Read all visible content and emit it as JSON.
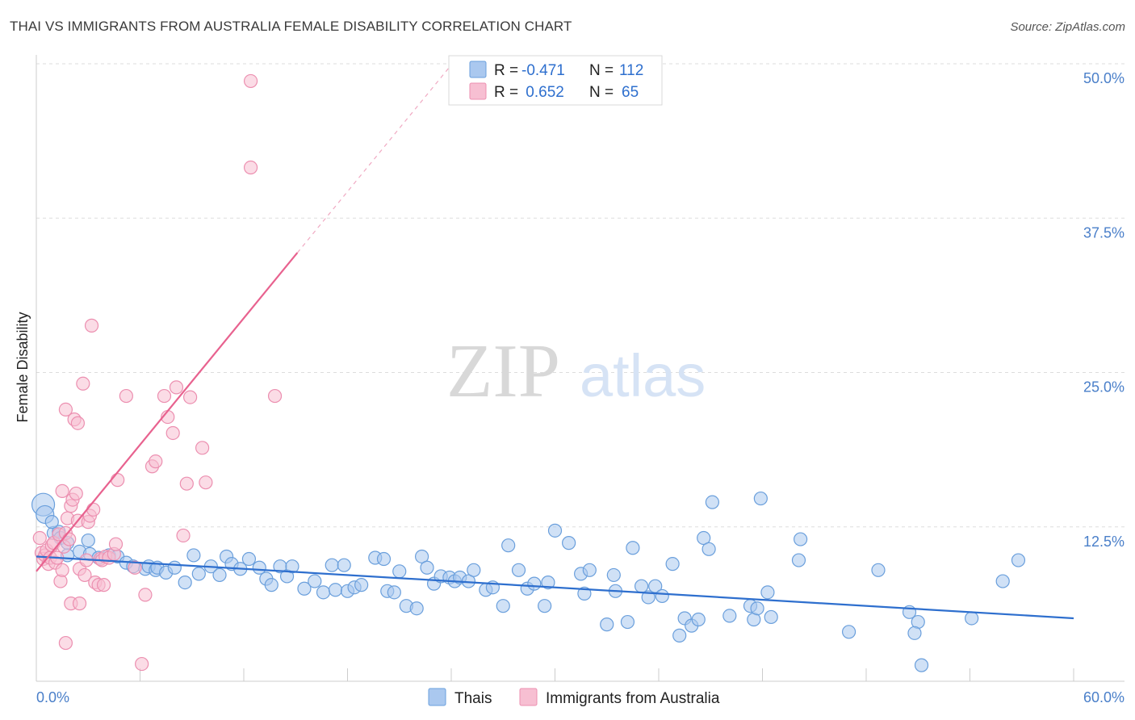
{
  "header": {
    "title": "THAI VS IMMIGRANTS FROM AUSTRALIA FEMALE DISABILITY CORRELATION CHART",
    "source": "Source: ZipAtlas.com"
  },
  "watermark": {
    "zip": "ZIP",
    "atlas": "atlas"
  },
  "legend": {
    "rows": [
      {
        "r_label": "R =",
        "r_value": "-0.471",
        "n_label": "N =",
        "n_value": "112",
        "color": "#aac8ef"
      },
      {
        "r_label": "R =",
        "r_value": " 0.652",
        "n_label": "N =",
        "n_value": "65",
        "color": "#f7bfd2"
      }
    ]
  },
  "colors": {
    "blue_fill": "#aac8ef",
    "blue_stroke": "#6a9fdc",
    "blue_line": "#2e6fce",
    "pink_fill": "#f7bfd2",
    "pink_stroke": "#ec8fb0",
    "pink_line": "#e8628f",
    "grid": "#dddddd",
    "tick_label": "#4a7fc9"
  },
  "chart_data": {
    "type": "scatter",
    "title": "THAI VS IMMIGRANTS FROM AUSTRALIA FEMALE DISABILITY CORRELATION CHART",
    "xlabel": "",
    "ylabel": "Female Disability",
    "xlim": [
      0,
      60
    ],
    "ylim": [
      0,
      50
    ],
    "x_tick_labels": [
      "0.0%",
      "60.0%"
    ],
    "y_ticks": [
      12.5,
      25.0,
      37.5,
      50.0
    ],
    "y_tick_labels": [
      "12.5%",
      "25.0%",
      "37.5%",
      "50.0%"
    ],
    "grid": true,
    "legend_position": "bottom",
    "series": [
      {
        "name": "Thais",
        "r": -0.471,
        "n": 112,
        "trend": {
          "x": [
            0,
            60
          ],
          "y": [
            10.1,
            5.1
          ]
        },
        "points": [
          [
            0.4,
            14.3
          ],
          [
            0.5,
            13.5
          ],
          [
            1.0,
            12.0
          ],
          [
            1.3,
            12.1
          ],
          [
            1.4,
            11.6
          ],
          [
            1.8,
            11.2
          ],
          [
            2.5,
            10.5
          ],
          [
            3.1,
            10.3
          ],
          [
            3.6,
            10.0
          ],
          [
            1.8,
            10.2
          ],
          [
            0.9,
            12.9
          ],
          [
            3.0,
            11.4
          ],
          [
            4.2,
            10.2
          ],
          [
            4.7,
            10.1
          ],
          [
            5.2,
            9.6
          ],
          [
            5.6,
            9.3
          ],
          [
            6.3,
            9.1
          ],
          [
            6.5,
            9.3
          ],
          [
            6.9,
            9.0
          ],
          [
            7.0,
            9.2
          ],
          [
            7.5,
            8.8
          ],
          [
            8.0,
            9.2
          ],
          [
            8.6,
            8.0
          ],
          [
            9.1,
            10.2
          ],
          [
            9.4,
            8.7
          ],
          [
            10.1,
            9.3
          ],
          [
            10.6,
            8.6
          ],
          [
            11.0,
            10.1
          ],
          [
            11.3,
            9.5
          ],
          [
            11.8,
            9.1
          ],
          [
            12.3,
            9.9
          ],
          [
            12.9,
            9.2
          ],
          [
            13.3,
            8.3
          ],
          [
            13.6,
            7.8
          ],
          [
            14.1,
            9.3
          ],
          [
            14.5,
            8.5
          ],
          [
            14.8,
            9.3
          ],
          [
            15.5,
            7.5
          ],
          [
            16.1,
            8.1
          ],
          [
            16.6,
            7.2
          ],
          [
            17.1,
            9.4
          ],
          [
            17.3,
            7.4
          ],
          [
            17.8,
            9.4
          ],
          [
            18.0,
            7.3
          ],
          [
            18.4,
            7.6
          ],
          [
            18.8,
            7.8
          ],
          [
            19.6,
            10.0
          ],
          [
            20.1,
            9.9
          ],
          [
            20.3,
            7.3
          ],
          [
            20.7,
            7.2
          ],
          [
            21.0,
            8.9
          ],
          [
            21.4,
            6.1
          ],
          [
            22.0,
            5.9
          ],
          [
            22.3,
            10.1
          ],
          [
            22.6,
            9.2
          ],
          [
            23.0,
            7.9
          ],
          [
            23.4,
            8.5
          ],
          [
            23.9,
            8.4
          ],
          [
            24.2,
            8.1
          ],
          [
            24.5,
            8.4
          ],
          [
            25.0,
            8.1
          ],
          [
            25.3,
            9.0
          ],
          [
            26.0,
            7.4
          ],
          [
            26.4,
            7.6
          ],
          [
            27.0,
            6.1
          ],
          [
            27.3,
            11.0
          ],
          [
            27.9,
            9.0
          ],
          [
            28.4,
            7.5
          ],
          [
            28.8,
            7.9
          ],
          [
            29.4,
            6.1
          ],
          [
            29.6,
            8.0
          ],
          [
            30.0,
            12.2
          ],
          [
            30.8,
            11.2
          ],
          [
            31.5,
            8.7
          ],
          [
            31.7,
            7.1
          ],
          [
            32.0,
            9.0
          ],
          [
            33.0,
            4.6
          ],
          [
            33.4,
            8.6
          ],
          [
            33.5,
            7.3
          ],
          [
            34.2,
            4.8
          ],
          [
            34.5,
            10.8
          ],
          [
            35.0,
            7.7
          ],
          [
            35.4,
            6.8
          ],
          [
            35.8,
            7.7
          ],
          [
            36.2,
            6.9
          ],
          [
            36.8,
            9.5
          ],
          [
            37.2,
            3.7
          ],
          [
            37.5,
            5.1
          ],
          [
            37.9,
            4.5
          ],
          [
            38.3,
            5.0
          ],
          [
            38.6,
            11.6
          ],
          [
            38.9,
            10.7
          ],
          [
            39.1,
            14.5
          ],
          [
            40.1,
            5.3
          ],
          [
            41.3,
            6.1
          ],
          [
            41.5,
            5.0
          ],
          [
            41.7,
            5.9
          ],
          [
            41.9,
            14.8
          ],
          [
            42.3,
            7.2
          ],
          [
            42.5,
            5.2
          ],
          [
            44.1,
            9.8
          ],
          [
            44.2,
            11.5
          ],
          [
            48.7,
            9.0
          ],
          [
            47.0,
            4.0
          ],
          [
            50.5,
            5.6
          ],
          [
            51.0,
            4.8
          ],
          [
            50.8,
            3.9
          ],
          [
            51.2,
            1.3
          ],
          [
            54.1,
            5.1
          ],
          [
            55.9,
            8.1
          ],
          [
            56.8,
            9.8
          ]
        ]
      },
      {
        "name": "Immigrants from Australia",
        "r": 0.652,
        "n": 65,
        "trend": {
          "x": [
            0,
            15.1
          ],
          "y": [
            8.9,
            34.7
          ],
          "dashed_to": {
            "x": 24.0,
            "y": 49.9
          }
        },
        "points": [
          [
            0.2,
            11.6
          ],
          [
            0.3,
            10.4
          ],
          [
            0.4,
            9.9
          ],
          [
            0.5,
            10.2
          ],
          [
            0.6,
            10.6
          ],
          [
            0.7,
            9.5
          ],
          [
            0.8,
            10.0
          ],
          [
            0.9,
            11.0
          ],
          [
            1.0,
            11.2
          ],
          [
            1.1,
            9.6
          ],
          [
            1.2,
            10.0
          ],
          [
            1.3,
            11.9
          ],
          [
            1.4,
            8.1
          ],
          [
            1.5,
            9.0
          ],
          [
            1.6,
            10.9
          ],
          [
            1.7,
            12.0
          ],
          [
            1.9,
            11.5
          ],
          [
            2.0,
            6.3
          ],
          [
            1.5,
            15.4
          ],
          [
            1.7,
            22.0
          ],
          [
            1.8,
            13.2
          ],
          [
            2.0,
            14.2
          ],
          [
            2.1,
            14.7
          ],
          [
            2.2,
            21.2
          ],
          [
            2.3,
            15.2
          ],
          [
            2.4,
            13.0
          ],
          [
            2.5,
            9.1
          ],
          [
            2.4,
            20.9
          ],
          [
            2.5,
            6.3
          ],
          [
            2.7,
            24.1
          ],
          [
            2.8,
            8.6
          ],
          [
            2.9,
            9.8
          ],
          [
            3.0,
            12.9
          ],
          [
            3.1,
            13.4
          ],
          [
            3.2,
            28.8
          ],
          [
            3.3,
            13.9
          ],
          [
            3.4,
            8.0
          ],
          [
            3.6,
            7.8
          ],
          [
            3.7,
            9.9
          ],
          [
            3.8,
            9.8
          ],
          [
            3.9,
            7.8
          ],
          [
            4.0,
            10.1
          ],
          [
            4.2,
            10.0
          ],
          [
            4.5,
            10.3
          ],
          [
            4.6,
            11.1
          ],
          [
            4.7,
            16.3
          ],
          [
            5.2,
            23.1
          ],
          [
            5.7,
            9.2
          ],
          [
            6.3,
            7.0
          ],
          [
            6.1,
            1.4
          ],
          [
            6.7,
            17.4
          ],
          [
            6.9,
            17.8
          ],
          [
            7.4,
            23.1
          ],
          [
            7.6,
            21.4
          ],
          [
            7.9,
            20.1
          ],
          [
            8.1,
            23.8
          ],
          [
            8.5,
            11.8
          ],
          [
            8.7,
            16.0
          ],
          [
            8.9,
            23.0
          ],
          [
            9.6,
            18.9
          ],
          [
            1.7,
            3.1
          ],
          [
            9.8,
            16.1
          ],
          [
            12.4,
            41.6
          ],
          [
            12.4,
            48.6
          ],
          [
            13.8,
            23.1
          ]
        ]
      }
    ]
  }
}
